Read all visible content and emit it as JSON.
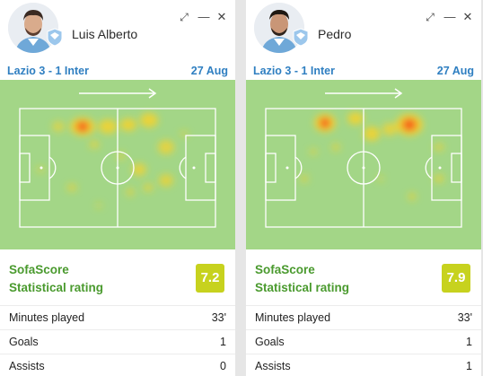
{
  "cards": [
    {
      "player_name": "Luis Alberto",
      "match": "Lazio 3 - 1 Inter",
      "date": "27 Aug",
      "rating_label_line1": "SofaScore",
      "rating_label_line2": "Statistical rating",
      "rating": "7.2",
      "stats": [
        {
          "label": "Minutes played",
          "value": "33'"
        },
        {
          "label": "Goals",
          "value": "1"
        },
        {
          "label": "Assists",
          "value": "0"
        }
      ],
      "controls": {
        "expand": "expand-icon",
        "minimize": "minimize-icon",
        "close": "close-icon"
      }
    },
    {
      "player_name": "Pedro",
      "match": "Lazio 3 - 1 Inter",
      "date": "27 Aug",
      "rating_label_line1": "SofaScore",
      "rating_label_line2": "Statistical rating",
      "rating": "7.9",
      "stats": [
        {
          "label": "Minutes played",
          "value": "33'"
        },
        {
          "label": "Goals",
          "value": "1"
        },
        {
          "label": "Assists",
          "value": "1"
        }
      ],
      "controls": {
        "expand": "expand-icon",
        "minimize": "minimize-icon",
        "close": "close-icon"
      }
    }
  ],
  "colors": {
    "pitch": "#a3d687",
    "heat_hot": "#f5611e",
    "heat_warm": "#f7d22b",
    "rating_badge": "#c7d21e",
    "rating_text": "#4a9a2e",
    "match_text": "#2f7fc1"
  }
}
